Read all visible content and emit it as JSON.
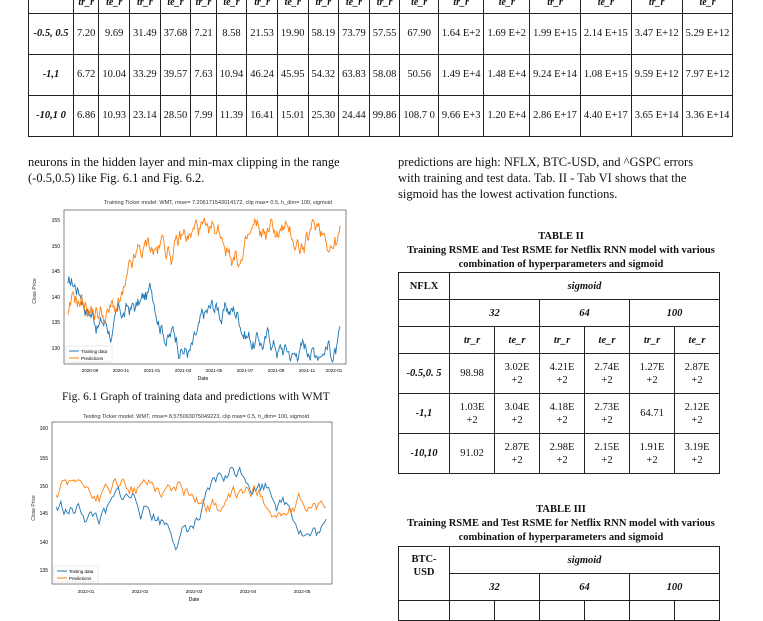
{
  "top_table": {
    "headers": [
      "tr_r",
      "te_r",
      "tr_r",
      "te_r",
      "tr_r",
      "te_r",
      "tr_r",
      "te_r",
      "tr_r",
      "te_r",
      "tr_r",
      "te_r",
      "tr_r",
      "te_r",
      "tr_r",
      "te_r",
      "tr_r",
      "te_r"
    ],
    "rows": [
      {
        "label": "-0.5, 0.5",
        "cells": [
          "7.20",
          "9.69",
          "31.49",
          "37.68",
          "7.21",
          "8.58",
          "21.53",
          "19.90",
          "58.19",
          "73.79",
          "57.55",
          "67.90",
          "1.64 E+2",
          "1.69 E+2",
          "1.99 E+15",
          "2.14 E+15",
          "3.47 E+12",
          "5.29 E+12"
        ]
      },
      {
        "label": "-1,1",
        "cells": [
          "6.72",
          "10.04",
          "33.29",
          "39.57",
          "7.63",
          "10.94",
          "46.24",
          "45.95",
          "54.32",
          "63.83",
          "58.08",
          "50.56",
          "1.49 E+4",
          "1.48 E+4",
          "9.24 E+14",
          "1.08 E+15",
          "9.59 E+12",
          "7.97 E+12"
        ]
      },
      {
        "label": "-10,1 0",
        "cells": [
          "6.86",
          "10.93",
          "23.14",
          "28.50",
          "7.99",
          "11.39",
          "16.41",
          "15.01",
          "25.30",
          "24.44",
          "99.86",
          "108.7 0",
          "9.66 E+3",
          "1.20 E+4",
          "2.86 E+17",
          "4.40 E+17",
          "3.65 E+14",
          "3.36 E+14"
        ]
      }
    ]
  },
  "left_para": "neurons in the hidden layer and min-max clipping in the range (-0.5,0.5) like Fig. 6.1 and Fig. 6.2.",
  "right_para": "predictions are high: NFLX, BTC-USD, and ^GSPC errors with training and test data. Tab. II - Tab VI shows that the sigmoid has the lowest activation functions.",
  "fig1": {
    "title": "Training Ticker model: WMT, rmse= 7.206171543014172, clip max= 0.5, h_dim= 100, sigmoid",
    "ylabel": "Close Price",
    "xlabel": "Date",
    "xticks": [
      "2020-09",
      "2020-11",
      "2021-01",
      "2021-03",
      "2021-05",
      "2021-07",
      "2021-09",
      "2021-11",
      "2022-01"
    ],
    "yticks": [
      "155",
      "150",
      "145",
      "140",
      "135",
      "130"
    ],
    "legend": [
      "Training data",
      "Predictions"
    ],
    "caption": "Fig. 6.1 Graph of training data and predictions with WMT"
  },
  "fig2": {
    "title": "Testing Ticker model: WMT, rmse= 8.575093075049223, clip max= 0.5, h_dim= 100, sigmoid",
    "ylabel": "Close Price",
    "xlabel": "Date",
    "xticks": [
      "2022-01",
      "2022-02",
      "2022-03",
      "2022-04",
      "2022-05"
    ],
    "yticks": [
      "160",
      "155",
      "150",
      "145",
      "140",
      "135"
    ],
    "legend": [
      "Testing data",
      "Predictions"
    ]
  },
  "colors": {
    "blue": "#1f77b4",
    "orange": "#ff7f0e"
  },
  "table2": {
    "label": "TABLE II",
    "title": "Training RSME and Test RSME for Netflix RNN model with various combination of hyperparameters and sigmoid",
    "ticker": "NFLX",
    "activation": "sigmoid",
    "dims": [
      "32",
      "64",
      "100"
    ],
    "sub": [
      "tr_r",
      "te_r",
      "tr_r",
      "te_r",
      "tr_r",
      "te_r"
    ],
    "rows": [
      {
        "label": "-0.5,0. 5",
        "cells": [
          "98.98",
          "3.02E +2",
          "4.21E +2",
          "2.74E +2",
          "1.27E +2",
          "2.87E +2"
        ]
      },
      {
        "label": "-1,1",
        "cells": [
          "1.03E +2",
          "3.04E +2",
          "4.18E +2",
          "2.73E +2",
          "64.71",
          "2.12E +2"
        ]
      },
      {
        "label": "-10,10",
        "cells": [
          "91.02",
          "2.87E +2",
          "2.98E +2",
          "2.15E +2",
          "1.91E +2",
          "3.19E +2"
        ]
      }
    ]
  },
  "table3": {
    "label": "TABLE III",
    "title": "Training RSME and Test RSME for Netflix RNN model with various combination of hyperparameters and sigmoid",
    "ticker": "BTC- USD",
    "activation": "sigmoid",
    "dims": [
      "32",
      "64",
      "100"
    ]
  }
}
